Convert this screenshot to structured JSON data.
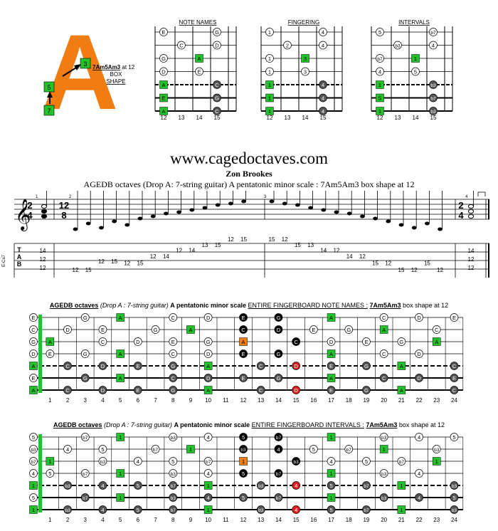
{
  "logo": {
    "letter": "A",
    "shape_label": "7Am5Am3",
    "shape_suffix": " at 12",
    "line2": "BOX",
    "line3": "SHAPE",
    "markers": [
      "3",
      "5",
      "7"
    ],
    "color": "#f07c12"
  },
  "colors": {
    "green": "#22c22a",
    "orange": "#f07c12",
    "red": "#e02020",
    "grey": "#555555",
    "black": "#000000"
  },
  "mini_diagrams": {
    "fret_labels": [
      "12",
      "13",
      "14",
      "15"
    ],
    "panels": [
      {
        "title": "NOTE NAMES",
        "rows": [
          [
            "E",
            "",
            "",
            "G"
          ],
          [
            "",
            "C",
            "",
            "D"
          ],
          [
            "G",
            "",
            "A",
            ""
          ],
          [
            "D",
            "",
            "E",
            ""
          ],
          [
            "A",
            "",
            "",
            "C"
          ],
          [
            "E",
            "",
            "",
            "G"
          ],
          [
            "A",
            "",
            "",
            "C"
          ]
        ]
      },
      {
        "title": "FINGERING",
        "rows": [
          [
            "1",
            "",
            "",
            "4"
          ],
          [
            "",
            "2",
            "",
            "4"
          ],
          [
            "1",
            "",
            "3",
            ""
          ],
          [
            "1",
            "",
            "3",
            ""
          ],
          [
            "1",
            "",
            "",
            "4"
          ],
          [
            "1",
            "",
            "",
            "4"
          ],
          [
            "1",
            "",
            "",
            "4"
          ]
        ]
      },
      {
        "title": "INTERVALS",
        "rows": [
          [
            "5",
            "",
            "",
            "b7"
          ],
          [
            "",
            "b3",
            "",
            "4"
          ],
          [
            "b7",
            "",
            "1",
            ""
          ],
          [
            "4",
            "",
            "5",
            ""
          ],
          [
            "1",
            "",
            "",
            "b3"
          ],
          [
            "5",
            "",
            "",
            "b7"
          ],
          [
            "1",
            "",
            "",
            "b3"
          ]
        ]
      }
    ]
  },
  "header": {
    "site": "www.cagedoctaves.com",
    "author": "Zon Brookes",
    "title": "AGEDB octaves (Drop A: 7-string guitar) A pentatonic minor scale : 7Am5Am3 box shape at 12"
  },
  "score": {
    "tuning_label": "E-Ca7",
    "time_sig_1": "2/4",
    "time_sig_2": "12/8",
    "time_sig_3": "2/4",
    "measure_numbers": [
      "1",
      "2",
      "3",
      "4"
    ],
    "tab_letters": [
      "T",
      "A",
      "B"
    ],
    "measure1": [
      "14",
      "12",
      "12"
    ],
    "run_up": [
      "12",
      "15",
      "12",
      "15",
      "12",
      "15",
      "12",
      "14",
      "12",
      "14",
      "13",
      "15",
      "12",
      "15"
    ],
    "run_down": [
      "15",
      "12",
      "15",
      "13",
      "14",
      "12",
      "14",
      "12",
      "15",
      "12",
      "15",
      "12",
      "15",
      "12"
    ],
    "measure4": [
      "14",
      "12",
      "12"
    ]
  },
  "fretboards": [
    {
      "title_prefix": "AGEDB octaves",
      "title_paren": "(Drop A : 7-string guitar)",
      "title_scale": "A pentatonic minor scale",
      "title_mode": "ENTIRE FINGERBOARD NOTE NAMES :",
      "title_shape": "7Am5Am3",
      "title_suffix": "box shape at 12",
      "open": [
        "E",
        "C",
        "G",
        "D",
        "A",
        "E",
        "A"
      ],
      "rows": [
        [
          "",
          "",
          "G",
          "",
          "A",
          "",
          "",
          "C",
          "",
          "D",
          "",
          "E",
          "",
          "G",
          "",
          "",
          "A",
          "",
          "",
          "C",
          "",
          "D",
          "",
          "E"
        ],
        [
          "",
          "D",
          "",
          "E",
          "",
          "",
          "G",
          "",
          "A",
          "",
          "",
          "C",
          "",
          "D",
          "",
          "E",
          "",
          "G",
          "",
          "A",
          "",
          "",
          "C",
          ""
        ],
        [
          "A",
          "",
          "",
          "C",
          "",
          "D",
          "",
          "E",
          "",
          "G",
          "",
          "A",
          "",
          "",
          "C",
          "",
          "D",
          "",
          "E",
          "",
          "G",
          "",
          "A",
          ""
        ],
        [
          "E",
          "",
          "G",
          "",
          "A",
          "",
          "",
          "C",
          "",
          "D",
          "",
          "E",
          "",
          "G",
          "",
          "",
          "A",
          "",
          "",
          "C",
          "",
          "D",
          "",
          ""
        ],
        [
          "",
          "C",
          "",
          "D",
          "",
          "E",
          "",
          "G",
          "",
          "A",
          "",
          "",
          "C",
          "",
          "D",
          "",
          "E",
          "",
          "G",
          "",
          "A",
          "",
          "",
          "C"
        ],
        [
          "",
          "",
          "G",
          "",
          "A",
          "",
          "",
          "C",
          "",
          "D",
          "",
          "E",
          "",
          "G",
          "",
          "",
          "A",
          "",
          "",
          "C",
          "",
          "D",
          "",
          "E"
        ],
        [
          "",
          "C",
          "",
          "D",
          "",
          "E",
          "",
          "G",
          "",
          "A",
          "",
          "",
          "C",
          "",
          "D",
          "",
          "E",
          "",
          "G",
          "",
          "A",
          "",
          "",
          "C"
        ]
      ]
    },
    {
      "title_prefix": "AGEDB octaves",
      "title_paren": "(Drop A : 7-string guitar)",
      "title_scale": "A pentatonic minor scale",
      "title_mode": "ENTIRE FINGERBOARD INTERVALS :",
      "title_shape": "7Am5Am3",
      "title_suffix": "box shape at 12",
      "open": [
        "5",
        "b3",
        "b7",
        "4",
        "1",
        "5",
        "1"
      ],
      "rows": [
        [
          "",
          "",
          "b7",
          "",
          "1",
          "",
          "",
          "b3",
          "",
          "4",
          "",
          "5",
          "",
          "b7",
          "",
          "",
          "1",
          "",
          "",
          "b3",
          "",
          "4",
          "",
          "5"
        ],
        [
          "",
          "4",
          "",
          "5",
          "",
          "",
          "b7",
          "",
          "1",
          "",
          "",
          "b3",
          "",
          "4",
          "",
          "5",
          "",
          "b7",
          "",
          "1",
          "",
          "",
          "b3",
          ""
        ],
        [
          "1",
          "",
          "",
          "b3",
          "",
          "4",
          "",
          "5",
          "",
          "b7",
          "",
          "1",
          "",
          "",
          "b3",
          "",
          "4",
          "",
          "5",
          "",
          "b7",
          "",
          "1",
          ""
        ],
        [
          "5",
          "",
          "b7",
          "",
          "1",
          "",
          "",
          "b3",
          "",
          "4",
          "",
          "5",
          "",
          "b7",
          "",
          "",
          "1",
          "",
          "",
          "b3",
          "",
          "4",
          "",
          ""
        ],
        [
          "",
          "b3",
          "",
          "4",
          "",
          "5",
          "",
          "b7",
          "",
          "1",
          "",
          "",
          "b3",
          "",
          "4",
          "",
          "5",
          "",
          "b7",
          "",
          "1",
          "",
          "",
          "b3"
        ],
        [
          "",
          "",
          "b7",
          "",
          "1",
          "",
          "",
          "b3",
          "",
          "4",
          "",
          "5",
          "",
          "b7",
          "",
          "",
          "1",
          "",
          "",
          "b3",
          "",
          "4",
          "",
          "5"
        ],
        [
          "",
          "b3",
          "",
          "4",
          "",
          "5",
          "",
          "b7",
          "",
          "1",
          "",
          "",
          "b3",
          "",
          "4",
          "",
          "5",
          "",
          "b7",
          "",
          "1",
          "",
          "",
          "b3"
        ]
      ]
    }
  ],
  "fret_numbers": [
    "1",
    "2",
    "3",
    "4",
    "5",
    "6",
    "7",
    "8",
    "9",
    "10",
    "11",
    "12",
    "13",
    "14",
    "15",
    "16",
    "17",
    "18",
    "19",
    "20",
    "21",
    "22",
    "23",
    "24"
  ]
}
